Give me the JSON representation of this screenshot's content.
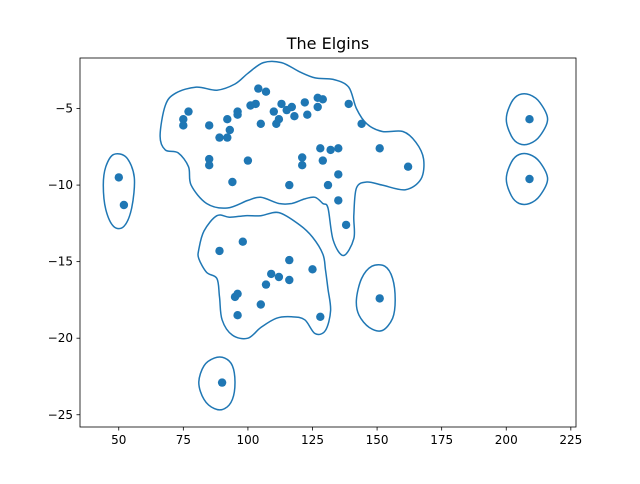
{
  "chart_data": {
    "type": "scatter",
    "title": "The Elgins",
    "xlabel": "",
    "ylabel": "",
    "xlim": [
      35,
      227
    ],
    "ylim": [
      -25.8,
      -1.7
    ],
    "xticks": [
      50,
      75,
      100,
      125,
      150,
      175,
      200,
      225
    ],
    "yticks": [
      -5,
      -10,
      -15,
      -20,
      -25
    ],
    "grid": false,
    "colors": {
      "points": "#1f77b4",
      "contours": "#1f77b4",
      "axes": "#000000"
    },
    "points": [
      [
        50,
        -9.5
      ],
      [
        52,
        -11.3
      ],
      [
        75,
        -5.7
      ],
      [
        75,
        -6.1
      ],
      [
        77,
        -5.2
      ],
      [
        85,
        -6.1
      ],
      [
        85,
        -8.3
      ],
      [
        85,
        -8.7
      ],
      [
        89,
        -6.9
      ],
      [
        92,
        -5.7
      ],
      [
        92,
        -6.9
      ],
      [
        93,
        -6.4
      ],
      [
        94,
        -9.8
      ],
      [
        96,
        -5.2
      ],
      [
        96,
        -5.4
      ],
      [
        100,
        -8.4
      ],
      [
        101,
        -4.8
      ],
      [
        103,
        -4.7
      ],
      [
        104,
        -3.7
      ],
      [
        105,
        -6.0
      ],
      [
        107,
        -3.9
      ],
      [
        110,
        -5.2
      ],
      [
        111,
        -6.0
      ],
      [
        112,
        -5.7
      ],
      [
        113,
        -4.7
      ],
      [
        115,
        -5.1
      ],
      [
        116,
        -10.0
      ],
      [
        117,
        -4.9
      ],
      [
        118,
        -5.5
      ],
      [
        121,
        -8.2
      ],
      [
        121,
        -8.7
      ],
      [
        122,
        -4.6
      ],
      [
        123,
        -5.4
      ],
      [
        127,
        -4.9
      ],
      [
        127,
        -4.3
      ],
      [
        128,
        -7.6
      ],
      [
        129,
        -4.4
      ],
      [
        129,
        -8.4
      ],
      [
        131,
        -10.0
      ],
      [
        132,
        -7.7
      ],
      [
        135,
        -7.6
      ],
      [
        135,
        -9.3
      ],
      [
        135,
        -11.0
      ],
      [
        138,
        -12.6
      ],
      [
        139,
        -4.7
      ],
      [
        144,
        -6.0
      ],
      [
        151,
        -7.6
      ],
      [
        162,
        -8.8
      ],
      [
        89,
        -14.3
      ],
      [
        95,
        -17.3
      ],
      [
        96,
        -17.1
      ],
      [
        96,
        -18.5
      ],
      [
        98,
        -13.7
      ],
      [
        105,
        -17.8
      ],
      [
        107,
        -16.5
      ],
      [
        109,
        -15.8
      ],
      [
        112,
        -16.0
      ],
      [
        116,
        -14.9
      ],
      [
        116,
        -16.2
      ],
      [
        125,
        -15.5
      ],
      [
        128,
        -18.6
      ],
      [
        151,
        -17.4
      ],
      [
        90,
        -22.9
      ],
      [
        209,
        -5.7
      ],
      [
        209,
        -9.6
      ]
    ],
    "contours": [
      [
        [
          66,
          -6.8
        ],
        [
          68,
          -4.8
        ],
        [
          72,
          -4.0
        ],
        [
          80,
          -3.6
        ],
        [
          88,
          -3.8
        ],
        [
          95,
          -3.4
        ],
        [
          100,
          -2.7
        ],
        [
          106,
          -2.0
        ],
        [
          113,
          -2.0
        ],
        [
          120,
          -2.6
        ],
        [
          126,
          -3.0
        ],
        [
          133,
          -3.1
        ],
        [
          139,
          -3.6
        ],
        [
          142,
          -5.0
        ],
        [
          146,
          -6.0
        ],
        [
          152,
          -6.5
        ],
        [
          160,
          -6.5
        ],
        [
          165,
          -7.2
        ],
        [
          168,
          -8.3
        ],
        [
          167,
          -9.6
        ],
        [
          161,
          -10.3
        ],
        [
          152,
          -10.0
        ],
        [
          146,
          -9.8
        ],
        [
          142,
          -10.2
        ],
        [
          141,
          -12.0
        ],
        [
          141,
          -13.5
        ],
        [
          137,
          -14.6
        ],
        [
          133,
          -13.6
        ],
        [
          131,
          -11.5
        ],
        [
          129,
          -11.2
        ],
        [
          126,
          -10.8
        ],
        [
          122,
          -10.9
        ],
        [
          117,
          -11.2
        ],
        [
          112,
          -11.2
        ],
        [
          105,
          -10.8
        ],
        [
          100,
          -11.0
        ],
        [
          92,
          -11.5
        ],
        [
          84,
          -11.2
        ],
        [
          78,
          -10.0
        ],
        [
          77,
          -8.8
        ],
        [
          73,
          -7.9
        ],
        [
          68,
          -7.7
        ],
        [
          66,
          -6.8
        ]
      ],
      [
        [
          81,
          -14.2
        ],
        [
          83,
          -13.0
        ],
        [
          88,
          -12.0
        ],
        [
          93,
          -12.1
        ],
        [
          99,
          -12.0
        ],
        [
          105,
          -12.0
        ],
        [
          112,
          -11.8
        ],
        [
          120,
          -12.6
        ],
        [
          125,
          -13.4
        ],
        [
          129,
          -14.5
        ],
        [
          130,
          -15.5
        ],
        [
          131,
          -16.8
        ],
        [
          132,
          -18.2
        ],
        [
          130,
          -19.5
        ],
        [
          126,
          -19.7
        ],
        [
          122,
          -18.8
        ],
        [
          117,
          -18.6
        ],
        [
          111,
          -18.7
        ],
        [
          105,
          -19.3
        ],
        [
          100,
          -20.0
        ],
        [
          94,
          -19.8
        ],
        [
          90,
          -18.8
        ],
        [
          89,
          -17.3
        ],
        [
          88,
          -16.1
        ],
        [
          84,
          -15.7
        ],
        [
          81,
          -14.8
        ],
        [
          81,
          -14.2
        ]
      ],
      [
        [
          44,
          -10.0
        ],
        [
          45,
          -8.8
        ],
        [
          48,
          -8.0
        ],
        [
          53,
          -8.2
        ],
        [
          56,
          -9.5
        ],
        [
          55,
          -11.5
        ],
        [
          52,
          -12.7
        ],
        [
          48,
          -12.7
        ],
        [
          45,
          -11.6
        ],
        [
          44,
          -10.0
        ]
      ],
      [
        [
          142,
          -17.5
        ],
        [
          144,
          -16.1
        ],
        [
          148,
          -15.3
        ],
        [
          153,
          -15.3
        ],
        [
          156,
          -16.1
        ],
        [
          157,
          -17.5
        ],
        [
          156,
          -18.7
        ],
        [
          152,
          -19.5
        ],
        [
          147,
          -19.3
        ],
        [
          143,
          -18.5
        ],
        [
          142,
          -17.5
        ]
      ],
      [
        [
          81,
          -22.9
        ],
        [
          83,
          -21.8
        ],
        [
          87,
          -21.3
        ],
        [
          91,
          -21.3
        ],
        [
          94,
          -21.8
        ],
        [
          95,
          -22.9
        ],
        [
          94,
          -24.0
        ],
        [
          91,
          -24.6
        ],
        [
          87,
          -24.6
        ],
        [
          83,
          -24.0
        ],
        [
          81,
          -22.9
        ]
      ],
      [
        [
          200,
          -5.7
        ],
        [
          202,
          -4.6
        ],
        [
          205,
          -4.1
        ],
        [
          209,
          -4.1
        ],
        [
          213,
          -4.6
        ],
        [
          216,
          -5.7
        ],
        [
          213,
          -6.8
        ],
        [
          209,
          -7.3
        ],
        [
          205,
          -7.3
        ],
        [
          202,
          -6.8
        ],
        [
          200,
          -5.7
        ]
      ],
      [
        [
          200,
          -9.6
        ],
        [
          202,
          -8.5
        ],
        [
          205,
          -8.0
        ],
        [
          209,
          -8.0
        ],
        [
          213,
          -8.5
        ],
        [
          216,
          -9.6
        ],
        [
          213,
          -10.7
        ],
        [
          209,
          -11.2
        ],
        [
          205,
          -11.2
        ],
        [
          202,
          -10.7
        ],
        [
          200,
          -9.6
        ]
      ]
    ]
  }
}
